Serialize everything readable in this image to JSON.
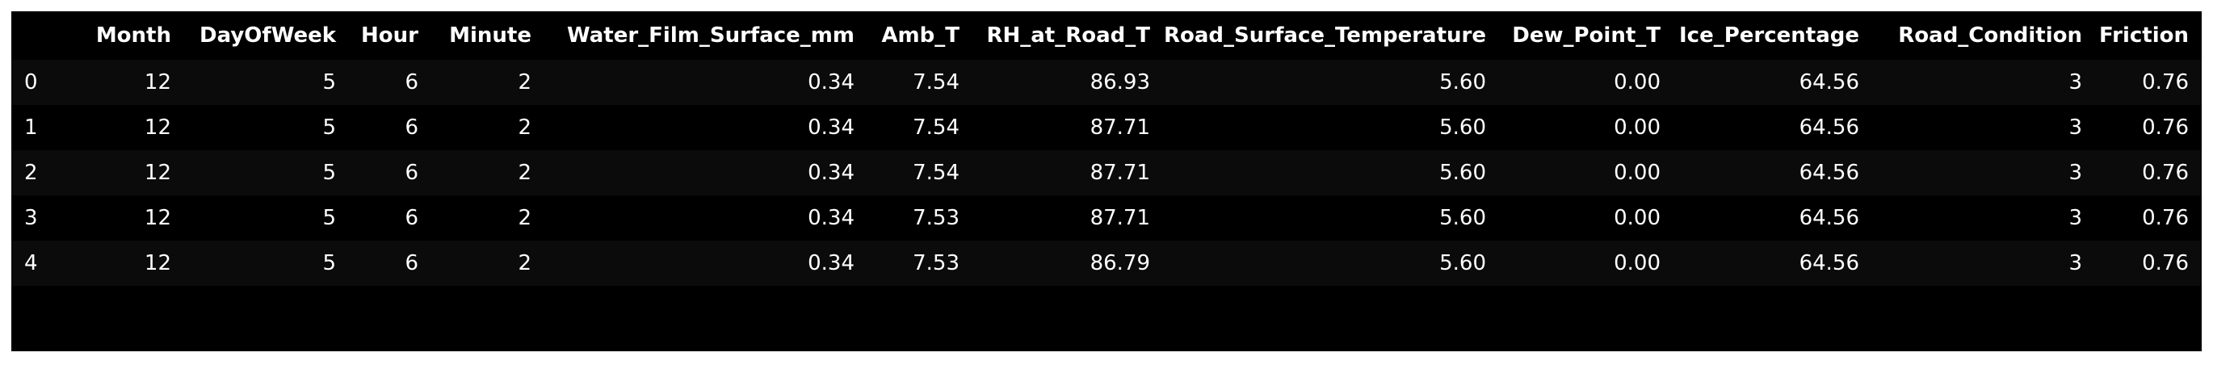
{
  "dataframe": {
    "columns": [
      "",
      "Month",
      "DayOfWeek",
      "Hour",
      "Minute",
      "Water_Film_Surface_mm",
      "Amb_T",
      "RH_at_Road_T",
      "Road_Surface_Temperature",
      "Dew_Point_T",
      "Ice_Percentage",
      "Road_Condition",
      "Friction"
    ],
    "rows": [
      [
        "0",
        "12",
        "5",
        "6",
        "2",
        "0.34",
        "7.54",
        "86.93",
        "5.60",
        "0.00",
        "64.56",
        "3",
        "0.76"
      ],
      [
        "1",
        "12",
        "5",
        "6",
        "2",
        "0.34",
        "7.54",
        "87.71",
        "5.60",
        "0.00",
        "64.56",
        "3",
        "0.76"
      ],
      [
        "2",
        "12",
        "5",
        "6",
        "2",
        "0.34",
        "7.54",
        "87.71",
        "5.60",
        "0.00",
        "64.56",
        "3",
        "0.76"
      ],
      [
        "3",
        "12",
        "5",
        "6",
        "2",
        "0.34",
        "7.53",
        "87.71",
        "5.60",
        "0.00",
        "64.56",
        "3",
        "0.76"
      ],
      [
        "4",
        "12",
        "5",
        "6",
        "2",
        "0.34",
        "7.53",
        "86.79",
        "5.60",
        "0.00",
        "64.56",
        "3",
        "0.76"
      ]
    ]
  },
  "colors": {
    "background": "#000000",
    "text": "#ffffff",
    "stripe": "#0b0b0b"
  }
}
